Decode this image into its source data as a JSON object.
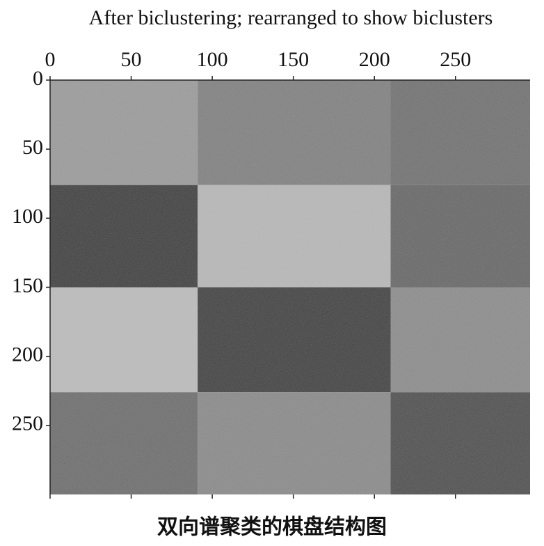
{
  "chart_data": {
    "type": "heatmap",
    "title": "After biclustering; rearranged to show biclusters",
    "caption": "双向谱聚类的棋盘结构图",
    "x_edges": [
      0,
      91,
      210,
      296
    ],
    "y_edges": [
      0,
      76,
      150,
      226,
      300
    ],
    "colors": [
      [
        "#9a9a9a",
        "#7e7e7e",
        "#6e6e6e"
      ],
      [
        "#3a3a3a",
        "#b8b8b8",
        "#636363"
      ],
      [
        "#bdbdbd",
        "#3c3c3c",
        "#8a8a8a"
      ],
      [
        "#6a6a6a",
        "#888888",
        "#4a4a4a"
      ]
    ],
    "xlim": [
      0,
      296
    ],
    "ylim": [
      300,
      0
    ],
    "xticks": [
      0,
      50,
      100,
      150,
      200,
      250
    ],
    "yticks": [
      0,
      50,
      100,
      150,
      200,
      250
    ]
  }
}
